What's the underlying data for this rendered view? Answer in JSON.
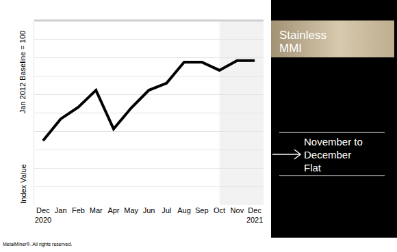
{
  "chart_data": {
    "type": "line",
    "title": "Stainless MMI",
    "categories": [
      "Dec 2020",
      "Jan",
      "Feb",
      "Mar",
      "Apr",
      "May",
      "Jun",
      "Jul",
      "Aug",
      "Sep",
      "Oct",
      "Nov",
      "Dec 2021"
    ],
    "values": [
      67.4,
      73.3,
      76.5,
      81.1,
      70.6,
      76.3,
      81.1,
      83,
      88.7,
      88.7,
      86.5,
      89.1,
      89.1
    ],
    "color": "#000000",
    "ylim": [
      50,
      100
    ],
    "yticks": [
      50,
      55,
      60,
      65,
      70,
      75,
      80,
      85,
      90,
      95,
      100
    ],
    "grid": true,
    "tick_labels": "x",
    "ylabel": "Jan 2012 Baseline = 100",
    "annotations": [
      "Index Value",
      "November to December",
      "Flat"
    ],
    "footer": "MetalMiner®. All rights reserved."
  }
}
